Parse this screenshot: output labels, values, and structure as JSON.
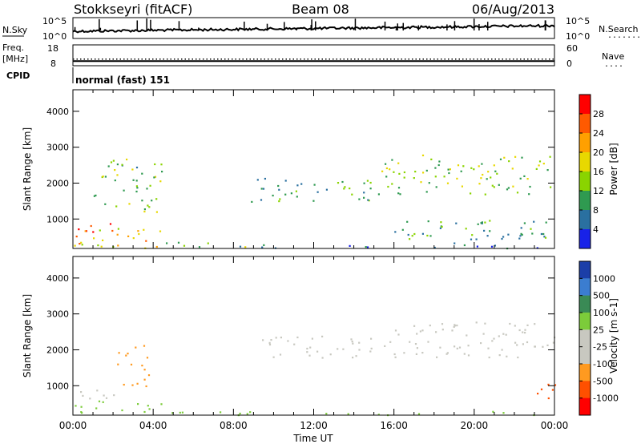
{
  "header": {
    "radar_label": "Stokkseyri (fitACF)",
    "beam_label": "Beam 08",
    "date_label": "06/Aug/2013"
  },
  "noise_panel": {
    "left_label": "N.Sky",
    "left_ticks": [
      "10^5",
      "10^0"
    ],
    "right_ticks": [
      "10^5",
      "10^0"
    ],
    "right_label": "N.Search",
    "right_label_dots": "......."
  },
  "freq_panel": {
    "left_label_top": "Freq.",
    "left_label_bottom": "[MHz]",
    "left_ticks": [
      "18",
      "8"
    ],
    "right_ticks": [
      "60",
      "0"
    ],
    "right_label": "Nave",
    "right_label_dots": "....",
    "freq_value": 10,
    "nave_value": 18
  },
  "cpid_panel": {
    "label": "CPID",
    "value_text": "normal (fast) 151"
  },
  "x_axis": {
    "tick_labels": [
      "00:00",
      "04:00",
      "08:00",
      "12:00",
      "16:00",
      "20:00",
      "00:00"
    ],
    "tick_hours": [
      0,
      4,
      8,
      12,
      16,
      20,
      24
    ],
    "label": "Time UT",
    "range_hours": [
      0,
      24
    ]
  },
  "chart_data": [
    {
      "type": "heatmap",
      "name": "power",
      "ylabel": "Slant Range [km]",
      "y_ticks": [
        1000,
        2000,
        3000,
        4000
      ],
      "y_tick_labels": [
        "1000",
        "2000",
        "3000",
        "4000"
      ],
      "ylim": [
        180,
        4600
      ],
      "colorbar_label": "Power [dB]",
      "colorbar_ticks": [
        "28",
        "24",
        "20",
        "16",
        "12",
        "8",
        "4"
      ],
      "colorbar_colors": [
        "#ff0000",
        "#ff5a00",
        "#ffa000",
        "#e8d800",
        "#8ad400",
        "#2f9a50",
        "#2a70a0",
        "#1822e8"
      ],
      "echo_regions": [
        {
          "t0": 0.0,
          "t1": 4.6,
          "r0": 200,
          "r1": 800,
          "level": 20
        },
        {
          "t0": 0.0,
          "t1": 2.0,
          "r0": 500,
          "r1": 900,
          "level": 26
        },
        {
          "t0": 4.6,
          "t1": 9.0,
          "r0": 200,
          "r1": 400,
          "level": 12
        },
        {
          "t0": 9.0,
          "t1": 24.0,
          "r0": 200,
          "r1": 300,
          "level": 8
        },
        {
          "t0": 1.0,
          "t1": 4.4,
          "r0": 1200,
          "r1": 2700,
          "level": 12
        },
        {
          "t0": 8.8,
          "t1": 15.2,
          "r0": 1500,
          "r1": 2200,
          "level": 10
        },
        {
          "t0": 15.2,
          "t1": 24.0,
          "r0": 1700,
          "r1": 2800,
          "level": 14
        },
        {
          "t0": 16.0,
          "t1": 24.0,
          "r0": 300,
          "r1": 1000,
          "level": 10
        }
      ]
    },
    {
      "type": "heatmap",
      "name": "velocity",
      "ylabel": "Slant Range [km]",
      "y_ticks": [
        1000,
        2000,
        3000,
        4000
      ],
      "y_tick_labels": [
        "1000",
        "2000",
        "3000",
        "4000"
      ],
      "ylim": [
        180,
        4600
      ],
      "colorbar_label": "Velocity [m s-1]",
      "colorbar_ticks": [
        "1000",
        "500",
        "100",
        "25",
        "-25",
        "-100",
        "-500",
        "-1000"
      ],
      "colorbar_colors": [
        "#1b3ea8",
        "#3b7dd0",
        "#3a8a55",
        "#7ccc3a",
        "#c8c8c0",
        "#c8c8c0",
        "#ff9a20",
        "#ff5000",
        "#ff0000"
      ],
      "echo_regions": [
        {
          "t0": 0.0,
          "t1": 4.6,
          "r0": 250,
          "r1": 600,
          "level": 80
        },
        {
          "t0": 0.0,
          "t1": 2.5,
          "r0": 650,
          "r1": 1000,
          "level": 0
        },
        {
          "t0": 2.2,
          "t1": 3.8,
          "r0": 1000,
          "r1": 2200,
          "level": -300
        },
        {
          "t0": 4.6,
          "t1": 24.0,
          "r0": 200,
          "r1": 300,
          "level": 60
        },
        {
          "t0": 9.0,
          "t1": 16.0,
          "r0": 1800,
          "r1": 2400,
          "level": 0
        },
        {
          "t0": 16.0,
          "t1": 24.0,
          "r0": 1800,
          "r1": 2800,
          "level": 0
        },
        {
          "t0": 23.0,
          "t1": 24.0,
          "r0": 600,
          "r1": 1300,
          "level": -600
        }
      ]
    }
  ]
}
